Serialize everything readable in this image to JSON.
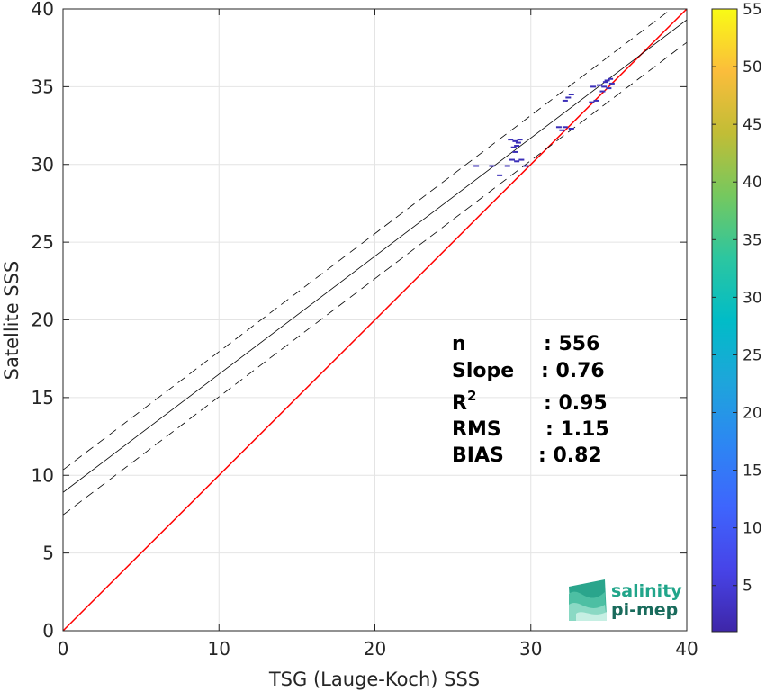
{
  "chart_data": {
    "type": "scatter",
    "title": "",
    "xlabel": "TSG (Lauge-Koch) SSS",
    "ylabel": "Satellite SSS",
    "xlim": [
      0,
      40
    ],
    "ylim": [
      0,
      40
    ],
    "xticks": [
      "0",
      "10",
      "20",
      "30",
      "40"
    ],
    "yticks": [
      "0",
      "5",
      "10",
      "15",
      "20",
      "25",
      "30",
      "35",
      "40"
    ],
    "grid": true,
    "colorbar": {
      "range": [
        1,
        55
      ],
      "ticks": [
        "5",
        "10",
        "15",
        "20",
        "25",
        "30",
        "35",
        "40",
        "45",
        "50",
        "55"
      ],
      "colormap": "parula"
    },
    "points": [
      {
        "x": 28.7,
        "y": 31.6
      },
      {
        "x": 29.0,
        "y": 31.5
      },
      {
        "x": 29.2,
        "y": 31.4
      },
      {
        "x": 29.1,
        "y": 31.2
      },
      {
        "x": 28.9,
        "y": 31.1
      },
      {
        "x": 29.3,
        "y": 31.6
      },
      {
        "x": 29.0,
        "y": 30.8
      },
      {
        "x": 28.8,
        "y": 30.3
      },
      {
        "x": 29.4,
        "y": 30.3
      },
      {
        "x": 29.1,
        "y": 30.2
      },
      {
        "x": 28.5,
        "y": 29.9
      },
      {
        "x": 29.7,
        "y": 29.9
      },
      {
        "x": 26.5,
        "y": 29.9
      },
      {
        "x": 27.5,
        "y": 29.9
      },
      {
        "x": 28.0,
        "y": 29.3
      },
      {
        "x": 32.2,
        "y": 32.4
      },
      {
        "x": 32.6,
        "y": 32.3
      },
      {
        "x": 31.8,
        "y": 32.4
      },
      {
        "x": 32.0,
        "y": 32.2
      },
      {
        "x": 32.2,
        "y": 34.1
      },
      {
        "x": 32.6,
        "y": 34.5
      },
      {
        "x": 32.4,
        "y": 34.3
      },
      {
        "x": 34.0,
        "y": 35.0
      },
      {
        "x": 34.4,
        "y": 35.1
      },
      {
        "x": 34.8,
        "y": 35.3
      },
      {
        "x": 35.1,
        "y": 35.5
      },
      {
        "x": 34.9,
        "y": 35.4
      },
      {
        "x": 35.2,
        "y": 35.2
      },
      {
        "x": 34.7,
        "y": 35.0
      },
      {
        "x": 34.2,
        "y": 34.1
      },
      {
        "x": 33.9,
        "y": 34.0
      },
      {
        "x": 34.6,
        "y": 34.7
      },
      {
        "x": 35.0,
        "y": 34.9
      }
    ],
    "lines": {
      "identity": {
        "color": "#ff0000"
      },
      "regression": {
        "slope": 0.76,
        "intercept": 8.9,
        "color": "#000000"
      },
      "confidence_offset": 1.45
    },
    "stats": [
      {
        "label": "n",
        "value": ": 556"
      },
      {
        "label": "Slope",
        "value": ": 0.76"
      },
      {
        "label": "R2",
        "value": ": 0.95"
      },
      {
        "label": "RMS",
        "value": ": 1.15"
      },
      {
        "label": "BIAS",
        "value": ": 0.82"
      }
    ]
  },
  "logo": {
    "line1": "salinity",
    "line2": "pi-mep"
  }
}
